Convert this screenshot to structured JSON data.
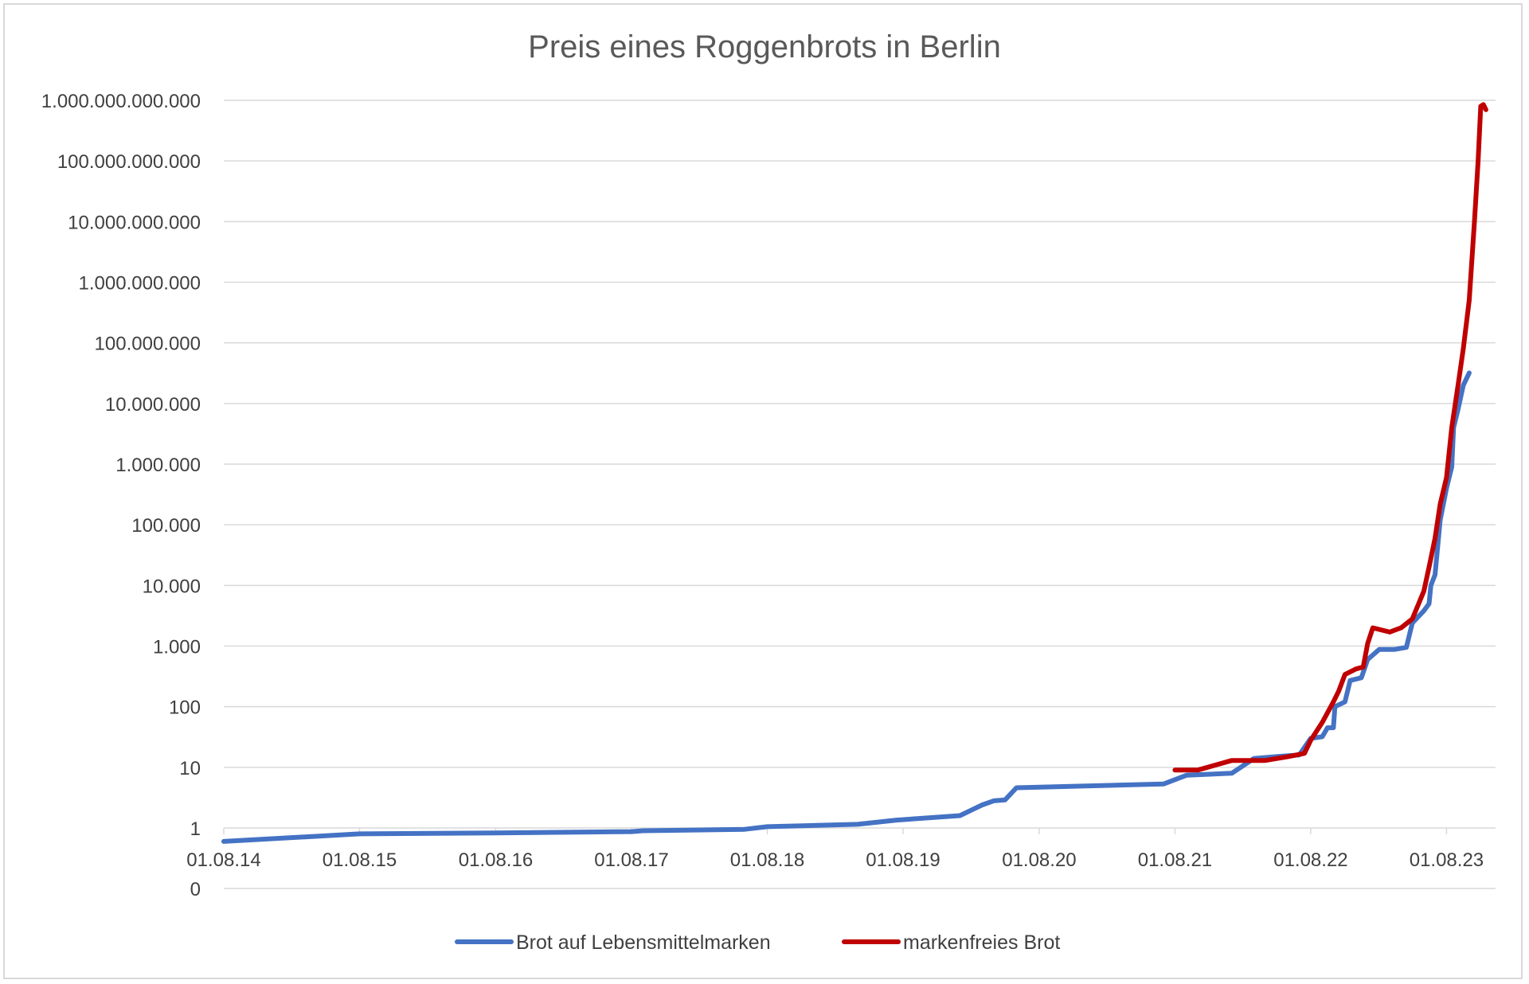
{
  "chart_data": {
    "type": "line",
    "title": "Preis eines Roggenbrots in Berlin",
    "xlabel": "",
    "ylabel": "",
    "y_scale": "log",
    "ylim": [
      1,
      1000000000000
    ],
    "x_range": [
      "1914-08-01",
      "1923-11-15"
    ],
    "grid": true,
    "legend_position": "bottom",
    "y_ticks": [
      {
        "value": 1000000000000,
        "label": "1.000.000.000.000"
      },
      {
        "value": 100000000000,
        "label": "100.000.000.000"
      },
      {
        "value": 10000000000,
        "label": "10.000.000.000"
      },
      {
        "value": 1000000000,
        "label": "1.000.000.000"
      },
      {
        "value": 100000000,
        "label": "100.000.000"
      },
      {
        "value": 10000000,
        "label": "10.000.000"
      },
      {
        "value": 1000000,
        "label": "1.000.000"
      },
      {
        "value": 100000,
        "label": "100.000"
      },
      {
        "value": 10000,
        "label": "10.000"
      },
      {
        "value": 1000,
        "label": "1.000"
      },
      {
        "value": 100,
        "label": "100"
      },
      {
        "value": 10,
        "label": "10"
      },
      {
        "value": 1,
        "label": "1"
      }
    ],
    "y_zero_label": "0",
    "x_ticks": [
      {
        "date": "1914-08-01",
        "label": "01.08.14"
      },
      {
        "date": "1915-08-01",
        "label": "01.08.15"
      },
      {
        "date": "1916-08-01",
        "label": "01.08.16"
      },
      {
        "date": "1917-08-01",
        "label": "01.08.17"
      },
      {
        "date": "1918-08-01",
        "label": "01.08.18"
      },
      {
        "date": "1919-08-01",
        "label": "01.08.19"
      },
      {
        "date": "1920-08-01",
        "label": "01.08.20"
      },
      {
        "date": "1921-08-01",
        "label": "01.08.21"
      },
      {
        "date": "1922-08-01",
        "label": "01.08.22"
      },
      {
        "date": "1923-08-01",
        "label": "01.08.23"
      }
    ],
    "series": [
      {
        "name": "Brot auf Lebensmittelmarken",
        "color": "#4472c4",
        "points": [
          [
            "1914-08-01",
            0.6
          ],
          [
            "1915-08-01",
            0.8
          ],
          [
            "1916-08-01",
            0.83
          ],
          [
            "1917-08-01",
            0.87
          ],
          [
            "1917-09-01",
            0.9
          ],
          [
            "1918-06-01",
            0.95
          ],
          [
            "1918-08-01",
            1.05
          ],
          [
            "1919-04-01",
            1.15
          ],
          [
            "1919-07-15",
            1.35
          ],
          [
            "1920-01-01",
            1.6
          ],
          [
            "1920-03-01",
            2.4
          ],
          [
            "1920-04-01",
            2.8
          ],
          [
            "1920-05-01",
            2.9
          ],
          [
            "1920-06-01",
            4.6
          ],
          [
            "1921-07-01",
            5.3
          ],
          [
            "1921-09-01",
            7.4
          ],
          [
            "1922-01-01",
            8.0
          ],
          [
            "1922-03-01",
            14.0
          ],
          [
            "1922-05-01",
            15.0
          ],
          [
            "1922-07-01",
            16.0
          ],
          [
            "1922-08-01",
            30.0
          ],
          [
            "1922-09-01",
            32.0
          ],
          [
            "1922-09-15",
            45.0
          ],
          [
            "1922-10-01",
            45.0
          ],
          [
            "1922-10-05",
            100.0
          ],
          [
            "1922-11-01",
            120.0
          ],
          [
            "1922-11-15",
            270.0
          ],
          [
            "1922-12-15",
            300.0
          ],
          [
            "1923-01-01",
            600.0
          ],
          [
            "1923-02-01",
            880.0
          ],
          [
            "1923-03-15",
            880.0
          ],
          [
            "1923-04-15",
            950.0
          ],
          [
            "1923-05-01",
            2400.0
          ],
          [
            "1923-06-01",
            3800.0
          ],
          [
            "1923-06-15",
            5000.0
          ],
          [
            "1923-06-20",
            10000.0
          ],
          [
            "1923-07-01",
            15000.0
          ],
          [
            "1923-07-15",
            120000.0
          ],
          [
            "1923-08-01",
            400000.0
          ],
          [
            "1923-08-15",
            900000.0
          ],
          [
            "1923-08-20",
            4000000.0
          ],
          [
            "1923-09-01",
            8000000.0
          ],
          [
            "1923-09-15",
            20000000.0
          ],
          [
            "1923-10-01",
            32000000.0
          ]
        ]
      },
      {
        "name": "markenfreies Brot",
        "color": "#c00000",
        "points": [
          [
            "1921-08-01",
            9.0
          ],
          [
            "1921-10-01",
            9.0
          ],
          [
            "1922-01-01",
            13.0
          ],
          [
            "1922-04-01",
            13.0
          ],
          [
            "1922-06-01",
            15.0
          ],
          [
            "1922-07-15",
            17.0
          ],
          [
            "1922-08-01",
            28.0
          ],
          [
            "1922-09-01",
            55.0
          ],
          [
            "1922-10-01",
            120.0
          ],
          [
            "1922-10-15",
            180.0
          ],
          [
            "1922-11-01",
            340.0
          ],
          [
            "1922-12-01",
            420.0
          ],
          [
            "1922-12-20",
            450.0
          ],
          [
            "1923-01-01",
            1100.0
          ],
          [
            "1923-01-15",
            2000.0
          ],
          [
            "1923-03-01",
            1700.0
          ],
          [
            "1923-04-01",
            2000.0
          ],
          [
            "1923-05-01",
            2800.0
          ],
          [
            "1923-06-01",
            8000.0
          ],
          [
            "1923-06-15",
            20000.0
          ],
          [
            "1923-07-01",
            60000.0
          ],
          [
            "1923-07-15",
            220000.0
          ],
          [
            "1923-08-01",
            600000.0
          ],
          [
            "1923-08-15",
            4000000.0
          ],
          [
            "1923-09-01",
            20000000.0
          ],
          [
            "1923-09-15",
            80000000.0
          ],
          [
            "1923-10-01",
            500000000.0
          ],
          [
            "1923-10-15",
            10000000000.0
          ],
          [
            "1923-10-25",
            100000000000.0
          ],
          [
            "1923-11-01",
            800000000000.0
          ],
          [
            "1923-11-08",
            850000000000.0
          ],
          [
            "1923-11-15",
            700000000000.0
          ]
        ]
      }
    ]
  }
}
